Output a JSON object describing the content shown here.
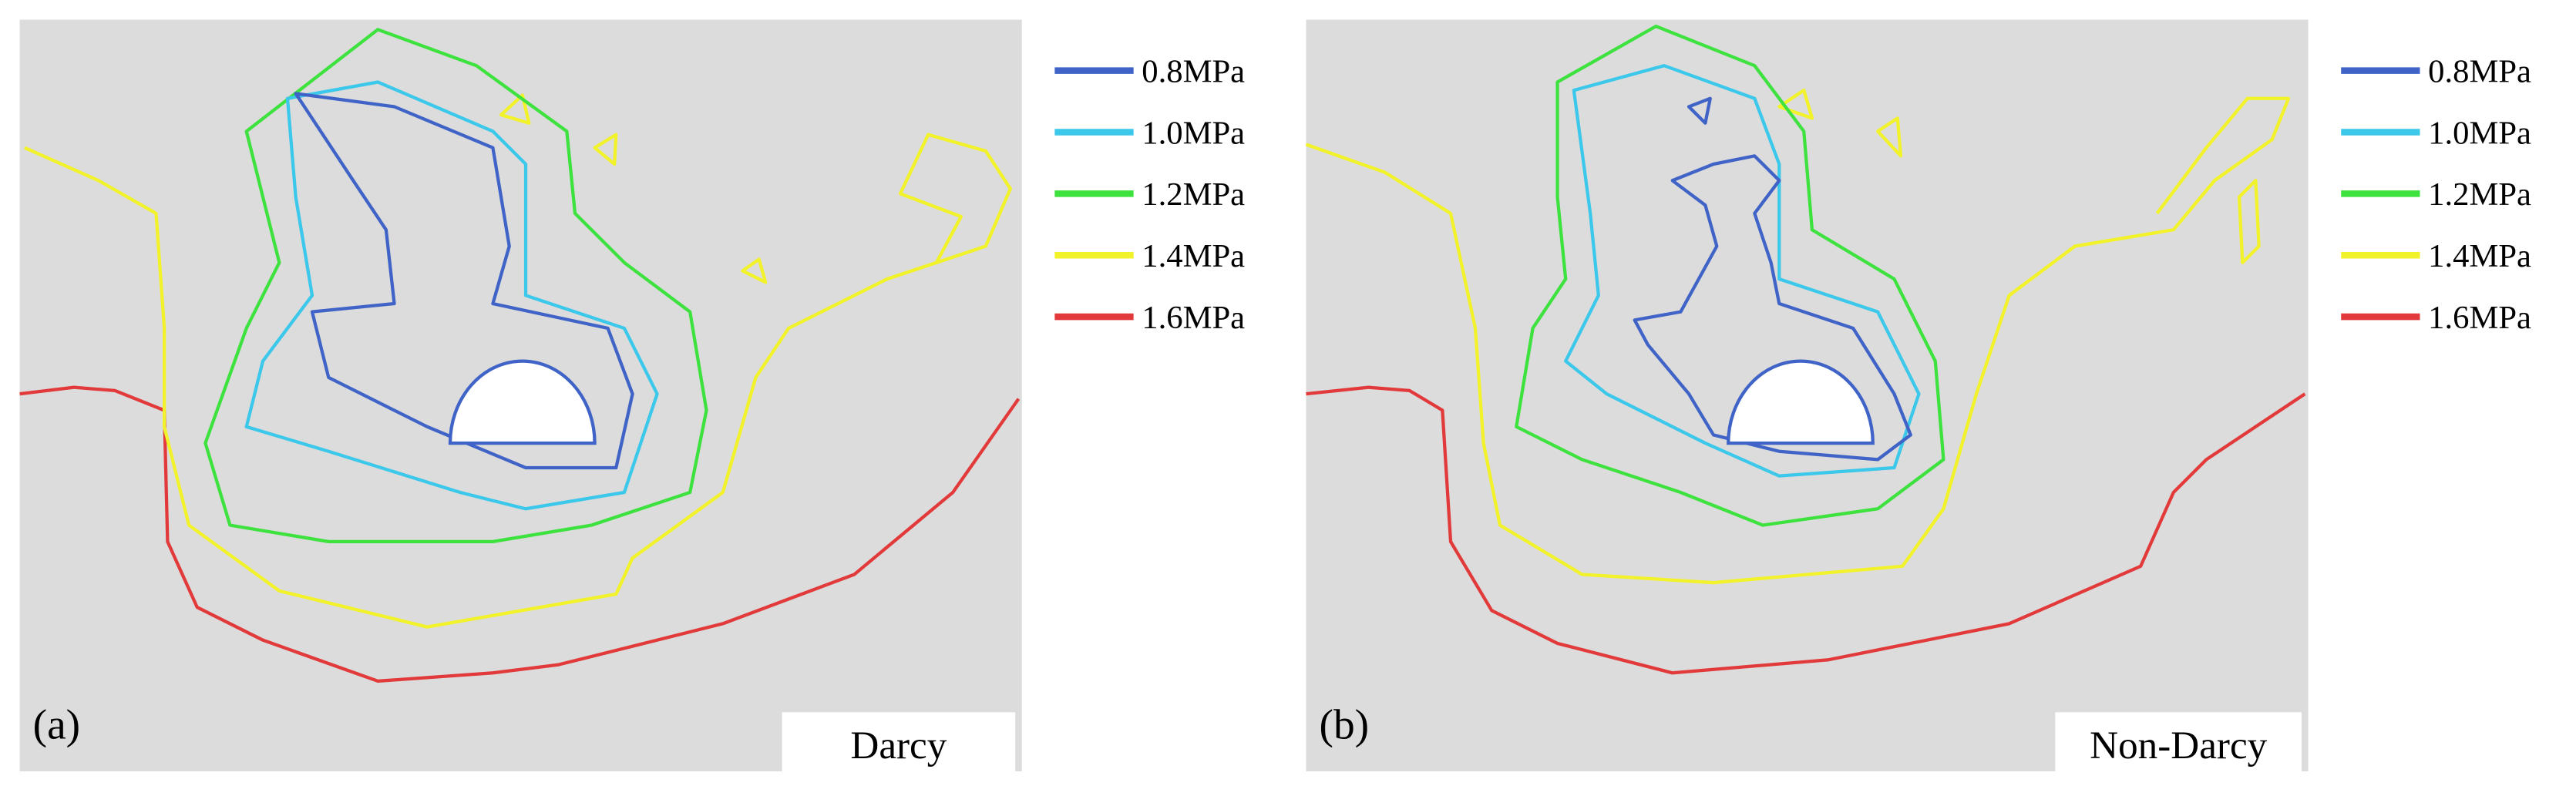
{
  "panels": [
    {
      "label": "(a)",
      "caption": "Darcy"
    },
    {
      "label": "(b)",
      "caption": "Non-Darcy"
    }
  ],
  "legend": [
    {
      "label": "0.8MPa",
      "color": "#3f63c6"
    },
    {
      "label": "1.0MPa",
      "color": "#3cc8ea"
    },
    {
      "label": "1.2MPa",
      "color": "#3ee23e"
    },
    {
      "label": "1.4MPa",
      "color": "#f2f22a"
    },
    {
      "label": "1.6MPa",
      "color": "#e23a3a"
    }
  ]
}
